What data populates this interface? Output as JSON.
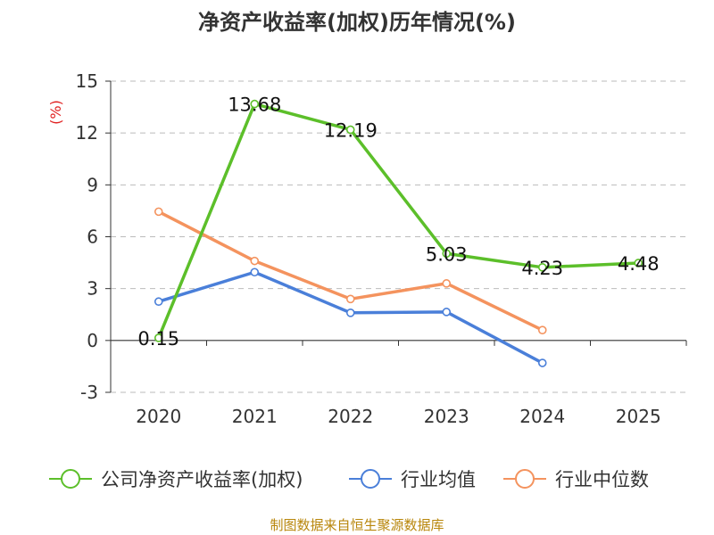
{
  "chart_data": {
    "type": "line",
    "title": "净资产收益率(加权)历年情况(%)",
    "ylabel": "(%)",
    "xlabel": "",
    "categories": [
      "2020",
      "2021",
      "2022",
      "2023",
      "2024",
      "2025"
    ],
    "ylim": [
      -3,
      15
    ],
    "yticks": [
      -3,
      0,
      3,
      6,
      9,
      12,
      15
    ],
    "grid": true,
    "legend_position": "bottom",
    "series": [
      {
        "name": "公司净资产收益率(加权)",
        "color": "#5cbf2a",
        "values": [
          0.15,
          13.68,
          12.19,
          5.03,
          4.23,
          4.48
        ],
        "labels": [
          "0.15",
          "13.68",
          "12.19",
          "5.03",
          "4.23",
          "4.48"
        ]
      },
      {
        "name": "行业均值",
        "color": "#4a7fd9",
        "values": [
          2.25,
          3.95,
          1.6,
          1.65,
          -1.3,
          null
        ]
      },
      {
        "name": "行业中位数",
        "color": "#f4935e",
        "values": [
          7.45,
          4.6,
          2.4,
          3.3,
          0.6,
          null
        ]
      }
    ]
  },
  "source": "制图数据来自恒生聚源数据库"
}
